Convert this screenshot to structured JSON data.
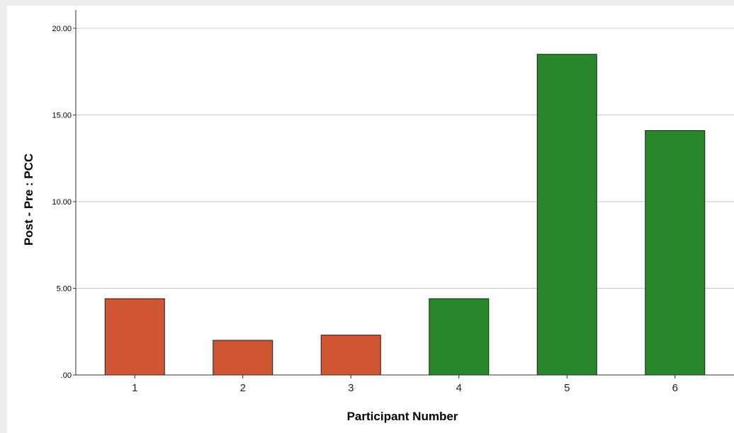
{
  "chart_data": {
    "type": "bar",
    "title": "",
    "xlabel": "Participant Number",
    "ylabel": "Post - Pre : PCC",
    "categories": [
      "1",
      "2",
      "3",
      "4",
      "5",
      "6"
    ],
    "values": [
      4.4,
      2.0,
      2.3,
      4.4,
      18.5,
      14.1
    ],
    "bar_colors": [
      "#d05533",
      "#d05533",
      "#d05533",
      "#2a862a",
      "#2a862a",
      "#2a862a"
    ],
    "ylim": [
      0,
      20
    ],
    "yticks": [
      0,
      5,
      10,
      15,
      20
    ],
    "ytick_labels": [
      ".00",
      "5.00",
      "10.00",
      "15.00",
      "20.00"
    ],
    "grid": true,
    "legend": "none"
  }
}
